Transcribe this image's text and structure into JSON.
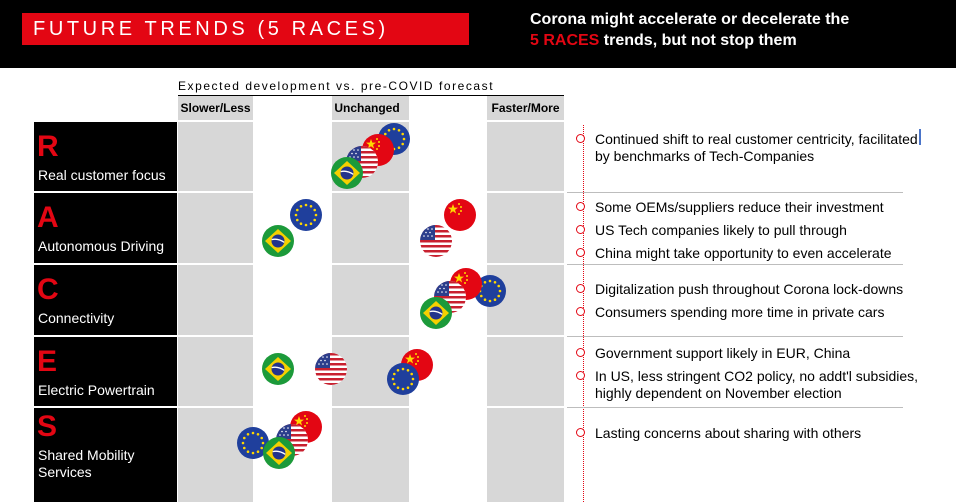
{
  "header": {
    "title": "FUTURE TRENDS (5 RACES)",
    "tagline_line1": "Corona might accelerate or decelerate the",
    "tagline_highlight": "5 RACES",
    "tagline_line2_rest": " trends, but not stop them"
  },
  "axis": {
    "caption": "Expected development vs. pre-COVID forecast",
    "slower": "Slower/Less",
    "unchanged": "Unchanged",
    "faster": "Faster/More"
  },
  "rows": [
    {
      "letter": "R",
      "label": "Real customer focus",
      "bullets": [
        "Continued shift to real customer centricity, facilitated",
        "by benchmarks of Tech-Companies"
      ]
    },
    {
      "letter": "A",
      "label": "Autonomous Driving",
      "bullets": [
        "Some OEMs/suppliers reduce their investment",
        "US Tech companies likely to pull through",
        "China might take opportunity to even accelerate"
      ]
    },
    {
      "letter": "C",
      "label": "Connectivity",
      "bullets": [
        "Digitalization push throughout Corona lock-downs",
        "Consumers spending more time in private cars"
      ]
    },
    {
      "letter": "E",
      "label": "Electric Powertrain",
      "bullets": [
        "Government support likely in EUR, China",
        "In US, less stringent CO2 policy, no addt'l subsidies,",
        "highly dependent on November election"
      ]
    },
    {
      "letter": "S",
      "label_line1": "Shared Mobility",
      "label_line2": "Services",
      "bullets": [
        "Lasting concerns about sharing with others"
      ]
    }
  ],
  "flags": {
    "names": [
      "eu-flag",
      "china-flag",
      "us-flag",
      "brazil-flag"
    ],
    "colors": {
      "red": "#e30613",
      "eu_blue": "#1f3f9c",
      "eu_star": "#ffd700",
      "brazil_green": "#1c9a3a",
      "brazil_yellow": "#f5d000",
      "brazil_blue": "#23348c",
      "us_red": "#c8202f",
      "us_blue": "#2c3e8c"
    }
  }
}
